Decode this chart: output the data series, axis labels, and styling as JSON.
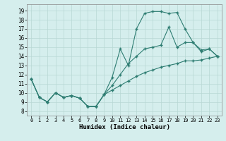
{
  "title": "",
  "xlabel": "Humidex (Indice chaleur)",
  "xlim": [
    -0.5,
    23.5
  ],
  "ylim": [
    7.5,
    19.7
  ],
  "yticks": [
    8,
    9,
    10,
    11,
    12,
    13,
    14,
    15,
    16,
    17,
    18,
    19
  ],
  "xticks": [
    0,
    1,
    2,
    3,
    4,
    5,
    6,
    7,
    8,
    9,
    10,
    11,
    12,
    13,
    14,
    15,
    16,
    17,
    18,
    19,
    20,
    21,
    22,
    23
  ],
  "bg_color": "#d5eeed",
  "line_color": "#2e7d72",
  "grid_color": "#b8d8d4",
  "lines": [
    {
      "x": [
        0,
        1,
        2,
        3,
        4,
        5,
        6,
        7,
        8,
        9,
        10,
        11,
        12,
        13,
        14,
        15,
        16,
        17,
        18,
        19,
        20,
        21,
        22,
        23
      ],
      "y": [
        11.5,
        9.5,
        9.0,
        10.0,
        9.5,
        9.7,
        9.4,
        8.5,
        8.5,
        9.8,
        11.7,
        14.8,
        13.0,
        17.0,
        18.7,
        18.9,
        18.9,
        18.7,
        18.8,
        17.0,
        15.5,
        14.5,
        14.8,
        14.0
      ]
    },
    {
      "x": [
        0,
        1,
        2,
        3,
        4,
        5,
        6,
        7,
        8,
        9,
        10,
        11,
        12,
        13,
        14,
        15,
        16,
        17,
        18,
        19,
        20,
        21,
        22,
        23
      ],
      "y": [
        11.5,
        9.5,
        9.0,
        10.0,
        9.5,
        9.7,
        9.4,
        8.5,
        8.5,
        9.8,
        10.8,
        12.0,
        13.2,
        14.0,
        14.8,
        15.0,
        15.2,
        17.2,
        15.0,
        15.5,
        15.5,
        14.7,
        14.8,
        14.0
      ]
    },
    {
      "x": [
        0,
        1,
        2,
        3,
        4,
        5,
        6,
        7,
        8,
        9,
        10,
        11,
        12,
        13,
        14,
        15,
        16,
        17,
        18,
        19,
        20,
        21,
        22,
        23
      ],
      "y": [
        11.5,
        9.5,
        9.0,
        10.0,
        9.5,
        9.7,
        9.4,
        8.5,
        8.5,
        9.8,
        10.3,
        10.8,
        11.3,
        11.8,
        12.2,
        12.5,
        12.8,
        13.0,
        13.2,
        13.5,
        13.5,
        13.6,
        13.8,
        14.0
      ]
    }
  ]
}
